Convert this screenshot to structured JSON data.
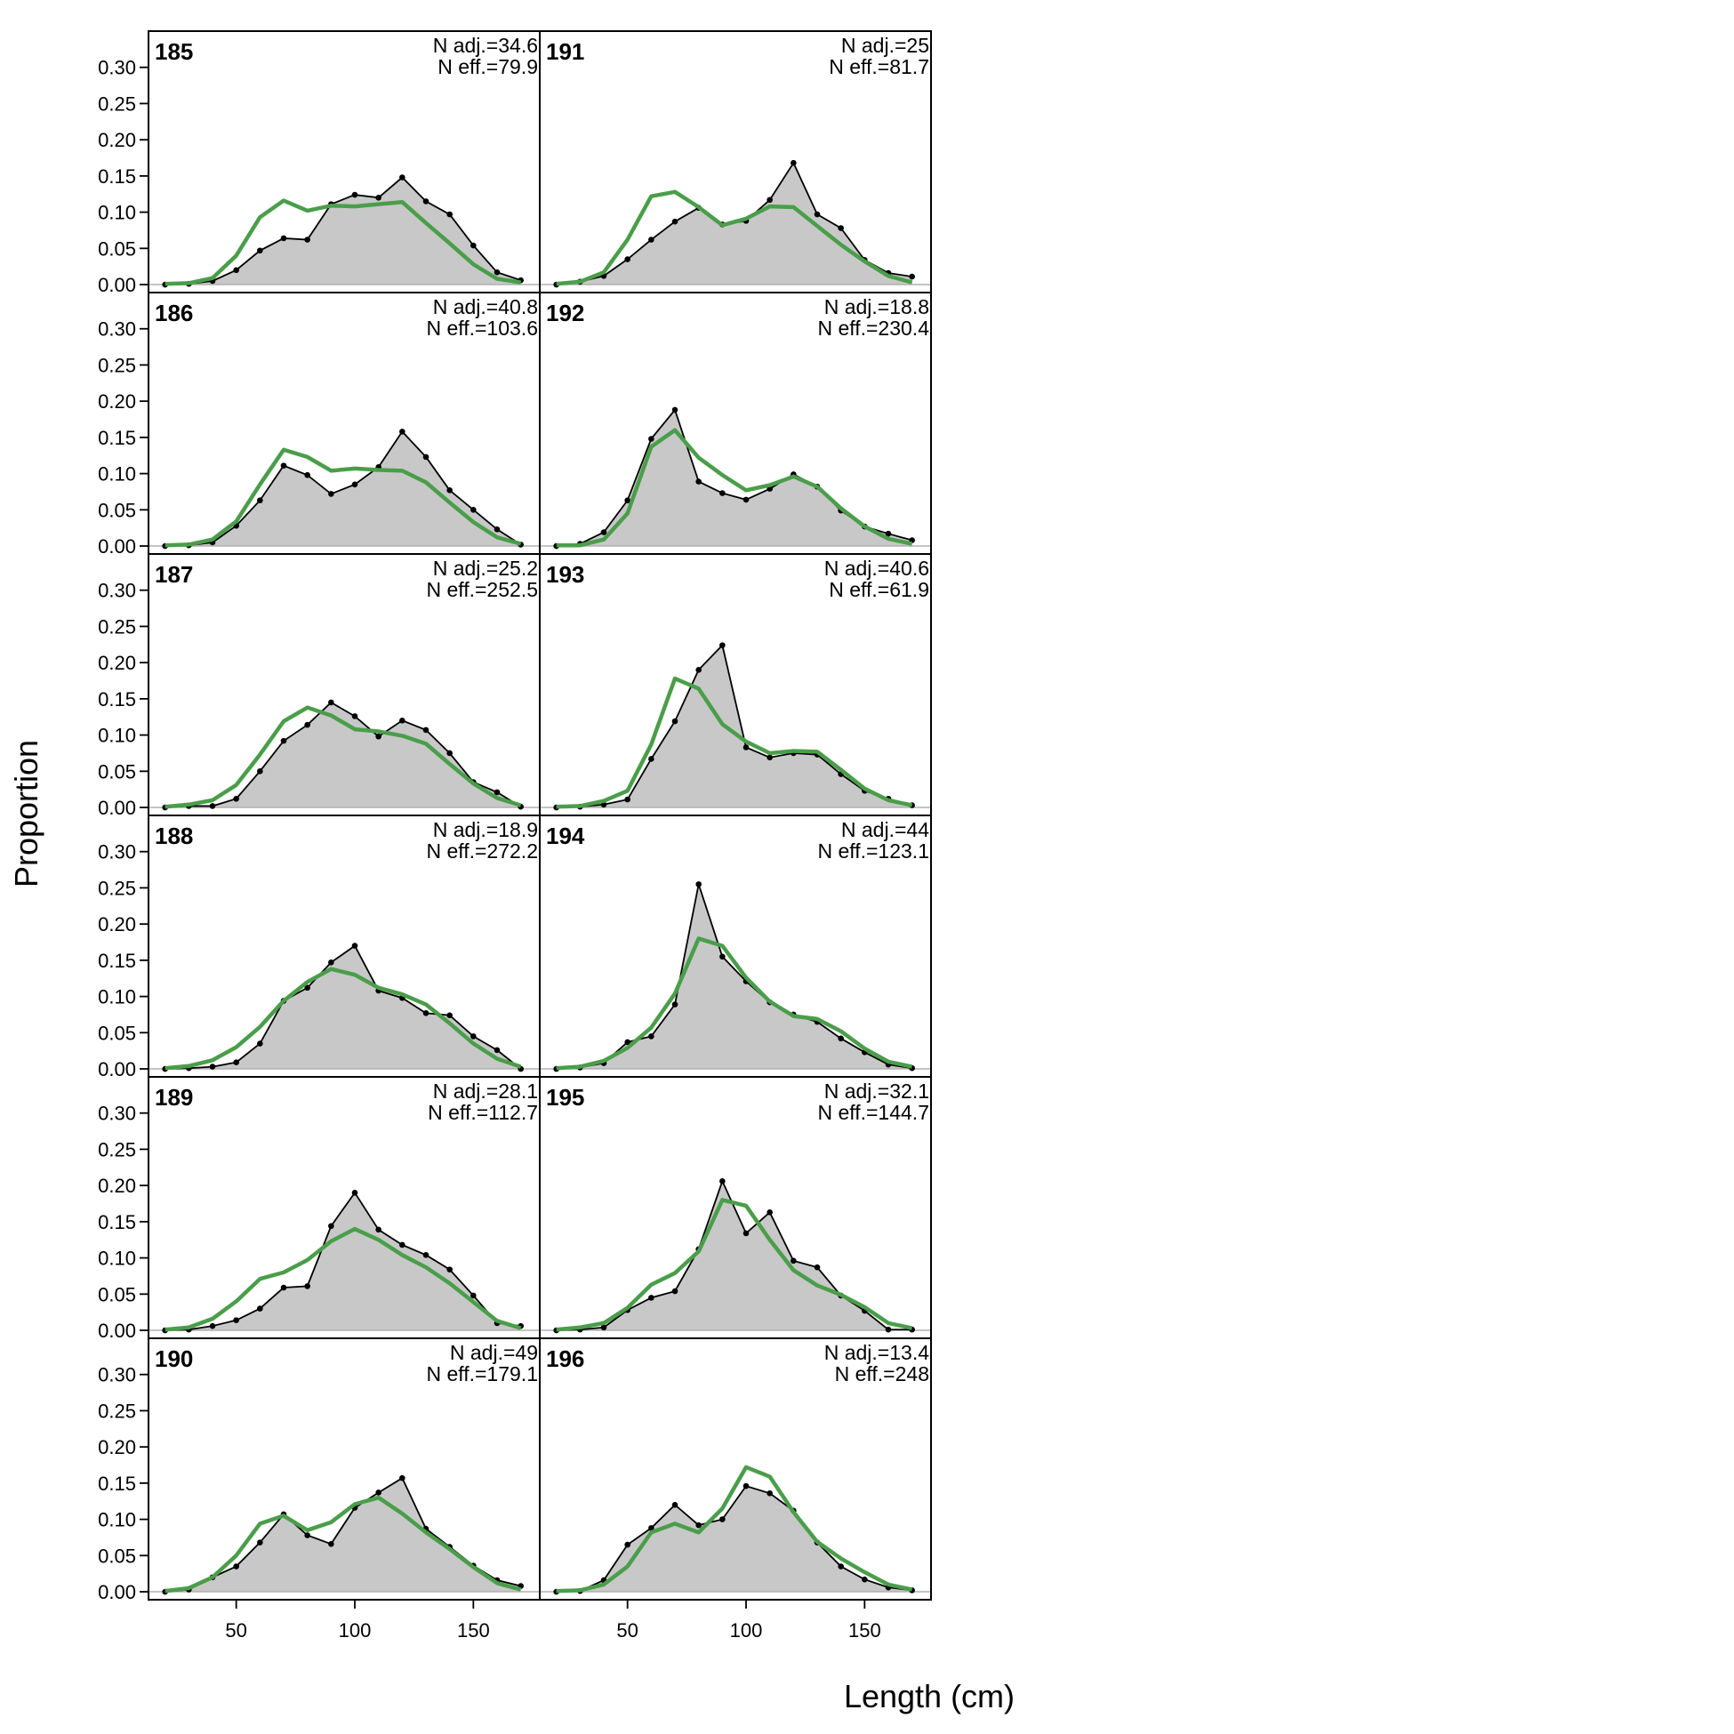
{
  "chart_data": {
    "type": "area",
    "xlabel": "Length (cm)",
    "ylabel": "Proportion",
    "xlim": [
      13,
      178
    ],
    "ylim": [
      -0.011,
      0.35
    ],
    "x_ticks": [
      50,
      100,
      150
    ],
    "y_ticks": [
      "0.00",
      "0.05",
      "0.10",
      "0.15",
      "0.20",
      "0.25",
      "0.30"
    ],
    "x": [
      20,
      30,
      40,
      50,
      60,
      70,
      80,
      90,
      100,
      110,
      120,
      130,
      140,
      150,
      160,
      170
    ],
    "colors": {
      "observed_fill": "#c8c8c8",
      "observed_line": "#000000",
      "expected_line": "#4a9e4a"
    },
    "panels": [
      {
        "label": "185",
        "n_adj": "N adj.=34.6",
        "n_eff": "N eff.=79.9",
        "observed": [
          0,
          0.001,
          0.005,
          0.02,
          0.047,
          0.064,
          0.062,
          0.111,
          0.124,
          0.12,
          0.148,
          0.115,
          0.097,
          0.054,
          0.017,
          0.006
        ],
        "expected": [
          0.001,
          0.002,
          0.009,
          0.04,
          0.093,
          0.116,
          0.102,
          0.109,
          0.108,
          0.111,
          0.114,
          0.085,
          0.057,
          0.028,
          0.008,
          0.003
        ]
      },
      {
        "label": "186",
        "n_adj": "N adj.=40.8",
        "n_eff": "N eff.=103.6",
        "observed": [
          0,
          0.001,
          0.005,
          0.028,
          0.063,
          0.111,
          0.098,
          0.072,
          0.085,
          0.109,
          0.158,
          0.123,
          0.077,
          0.05,
          0.023,
          0.002
        ],
        "expected": [
          0.001,
          0.002,
          0.009,
          0.034,
          0.085,
          0.133,
          0.123,
          0.104,
          0.107,
          0.105,
          0.104,
          0.088,
          0.06,
          0.033,
          0.012,
          0.003
        ]
      },
      {
        "label": "187",
        "n_adj": "N adj.=25.2",
        "n_eff": "N eff.=252.5",
        "observed": [
          0,
          0.002,
          0.002,
          0.012,
          0.05,
          0.092,
          0.114,
          0.145,
          0.126,
          0.098,
          0.12,
          0.107,
          0.075,
          0.035,
          0.021,
          0.001
        ],
        "expected": [
          0.001,
          0.004,
          0.01,
          0.031,
          0.073,
          0.119,
          0.138,
          0.127,
          0.108,
          0.105,
          0.099,
          0.088,
          0.06,
          0.033,
          0.013,
          0.003
        ]
      },
      {
        "label": "188",
        "n_adj": "N adj.=18.9",
        "n_eff": "N eff.=272.2",
        "observed": [
          0,
          0.001,
          0.003,
          0.009,
          0.035,
          0.094,
          0.112,
          0.147,
          0.17,
          0.108,
          0.098,
          0.077,
          0.074,
          0.045,
          0.026,
          0
        ],
        "expected": [
          0.001,
          0.004,
          0.012,
          0.03,
          0.058,
          0.094,
          0.12,
          0.138,
          0.13,
          0.112,
          0.103,
          0.089,
          0.063,
          0.035,
          0.014,
          0.003
        ]
      },
      {
        "label": "189",
        "n_adj": "N adj.=28.1",
        "n_eff": "N eff.=112.7",
        "observed": [
          0,
          0.001,
          0.006,
          0.014,
          0.03,
          0.059,
          0.061,
          0.144,
          0.19,
          0.139,
          0.118,
          0.104,
          0.084,
          0.048,
          0.01,
          0.006
        ],
        "expected": [
          0.001,
          0.004,
          0.016,
          0.04,
          0.071,
          0.08,
          0.097,
          0.123,
          0.14,
          0.125,
          0.104,
          0.087,
          0.065,
          0.039,
          0.013,
          0.003
        ]
      },
      {
        "label": "190",
        "n_adj": "N adj.=49",
        "n_eff": "N eff.=179.1",
        "observed": [
          0,
          0.003,
          0.02,
          0.035,
          0.068,
          0.107,
          0.078,
          0.066,
          0.116,
          0.137,
          0.157,
          0.087,
          0.062,
          0.036,
          0.016,
          0.008
        ],
        "expected": [
          0.001,
          0.005,
          0.02,
          0.05,
          0.094,
          0.105,
          0.085,
          0.096,
          0.121,
          0.13,
          0.108,
          0.082,
          0.059,
          0.034,
          0.012,
          0.003
        ]
      },
      {
        "label": "191",
        "n_adj": "N adj.=25",
        "n_eff": "N eff.=81.7",
        "observed": [
          0,
          0.004,
          0.012,
          0.035,
          0.062,
          0.087,
          0.106,
          0.083,
          0.088,
          0.117,
          0.168,
          0.097,
          0.078,
          0.034,
          0.016,
          0.011
        ],
        "expected": [
          0.001,
          0.004,
          0.017,
          0.062,
          0.122,
          0.128,
          0.107,
          0.082,
          0.091,
          0.108,
          0.107,
          0.081,
          0.055,
          0.032,
          0.012,
          0.003
        ]
      },
      {
        "label": "192",
        "n_adj": "N adj.=18.8",
        "n_eff": "N eff.=230.4",
        "observed": [
          0,
          0.003,
          0.019,
          0.063,
          0.148,
          0.188,
          0.089,
          0.073,
          0.064,
          0.079,
          0.099,
          0.082,
          0.049,
          0.027,
          0.017,
          0.008
        ],
        "expected": [
          0.001,
          0.001,
          0.009,
          0.045,
          0.137,
          0.16,
          0.122,
          0.098,
          0.077,
          0.084,
          0.096,
          0.082,
          0.052,
          0.027,
          0.01,
          0.003
        ]
      },
      {
        "label": "193",
        "n_adj": "N adj.=40.6",
        "n_eff": "N eff.=61.9",
        "observed": [
          0,
          0.001,
          0.004,
          0.011,
          0.067,
          0.119,
          0.19,
          0.224,
          0.083,
          0.069,
          0.075,
          0.073,
          0.046,
          0.023,
          0.012,
          0.003
        ],
        "expected": [
          0.001,
          0.002,
          0.009,
          0.023,
          0.087,
          0.178,
          0.164,
          0.115,
          0.091,
          0.075,
          0.078,
          0.077,
          0.052,
          0.026,
          0.01,
          0.003
        ]
      },
      {
        "label": "194",
        "n_adj": "N adj.=44",
        "n_eff": "N eff.=123.1",
        "observed": [
          0,
          0.002,
          0.008,
          0.037,
          0.045,
          0.089,
          0.255,
          0.155,
          0.121,
          0.092,
          0.075,
          0.065,
          0.042,
          0.023,
          0.006,
          0.001
        ],
        "expected": [
          0.001,
          0.003,
          0.011,
          0.029,
          0.057,
          0.104,
          0.18,
          0.17,
          0.126,
          0.093,
          0.073,
          0.069,
          0.052,
          0.028,
          0.01,
          0.003
        ]
      },
      {
        "label": "195",
        "n_adj": "N adj.=32.1",
        "n_eff": "N eff.=144.7",
        "observed": [
          0,
          0.001,
          0.004,
          0.028,
          0.045,
          0.054,
          0.112,
          0.206,
          0.134,
          0.163,
          0.096,
          0.087,
          0.048,
          0.027,
          0.001,
          0.001
        ],
        "expected": [
          0.001,
          0.004,
          0.01,
          0.031,
          0.063,
          0.079,
          0.109,
          0.18,
          0.172,
          0.125,
          0.083,
          0.062,
          0.049,
          0.032,
          0.01,
          0.003
        ]
      },
      {
        "label": "196",
        "n_adj": "N adj.=13.4",
        "n_eff": "N eff.=248",
        "observed": [
          0,
          0.001,
          0.016,
          0.065,
          0.088,
          0.12,
          0.092,
          0.1,
          0.146,
          0.136,
          0.112,
          0.068,
          0.035,
          0.017,
          0.006,
          0.002
        ],
        "expected": [
          0.001,
          0.002,
          0.01,
          0.035,
          0.082,
          0.094,
          0.082,
          0.115,
          0.172,
          0.159,
          0.11,
          0.069,
          0.046,
          0.027,
          0.01,
          0.003
        ]
      }
    ]
  }
}
